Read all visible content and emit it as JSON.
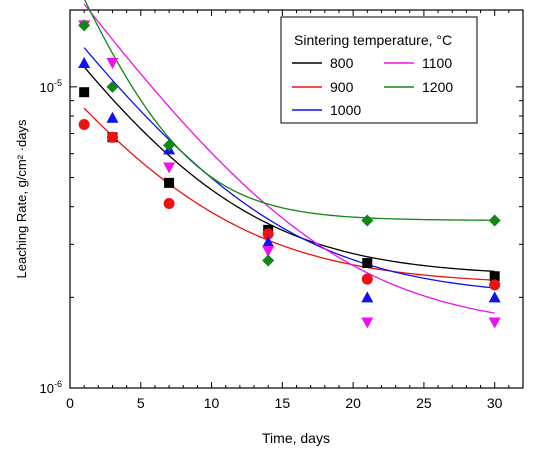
{
  "chart_data": {
    "type": "scatter",
    "xlabel": "Time, days",
    "ylabel": "Leaching Rate, g/cm² ·days",
    "xlim": [
      0,
      32
    ],
    "ylim": [
      1e-06,
      1.8e-05
    ],
    "yscale": "log",
    "x_ticks": [
      0,
      5,
      10,
      15,
      20,
      25,
      30
    ],
    "x_tick_labels": [
      "0",
      "5",
      "10",
      "15",
      "20",
      "25",
      "30"
    ],
    "y_major_ticks": [
      1e-06,
      1e-05
    ],
    "y_tick_labels": [
      {
        "mantissa": "10",
        "exp": "-6"
      },
      {
        "mantissa": "10",
        "exp": "-5"
      }
    ],
    "grid": false,
    "legend": {
      "title": "Sintering temperature, °C",
      "placement": "top-right"
    },
    "x": [
      1,
      3,
      7,
      14,
      21,
      30
    ],
    "series": [
      {
        "name": "800",
        "color": "#000000",
        "marker": "square",
        "values": [
          9.6e-06,
          6.8e-06,
          4.8e-06,
          3.35e-06,
          2.6e-06,
          2.35e-06
        ],
        "fit": {
          "a": 2.35e-06,
          "b": 9.3e-06,
          "k": 0.16
        }
      },
      {
        "name": "900",
        "color": "#ee1111",
        "marker": "circle",
        "values": [
          7.5e-06,
          6.8e-06,
          4.1e-06,
          3.25e-06,
          2.3e-06,
          2.2e-06
        ],
        "fit": {
          "a": 2.2e-06,
          "b": 6.3e-06,
          "k": 0.15
        }
      },
      {
        "name": "1000",
        "color": "#1111ee",
        "marker": "triangle-up",
        "values": [
          1.2e-05,
          7.9e-06,
          6.2e-06,
          3.05e-06,
          2e-06,
          2e-06
        ],
        "fit": {
          "a": 2e-06,
          "b": 1.15e-05,
          "k": 0.15
        }
      },
      {
        "name": "1100",
        "color": "#ee11ee",
        "marker": "triangle-down",
        "values": [
          1.6e-05,
          1.2e-05,
          5.4e-06,
          2.85e-06,
          1.65e-06,
          1.65e-06
        ],
        "fit": {
          "a": 1.55e-06,
          "b": 1.73e-05,
          "k": 0.15
        }
      },
      {
        "name": "1200",
        "color": "#118811",
        "marker": "diamond",
        "values": [
          1.6e-05,
          1e-05,
          6.4e-06,
          2.65e-06,
          3.6e-06,
          3.6e-06
        ],
        "fit": {
          "a": 3.6e-06,
          "b": 1.6e-05,
          "k": 0.27
        }
      }
    ]
  }
}
